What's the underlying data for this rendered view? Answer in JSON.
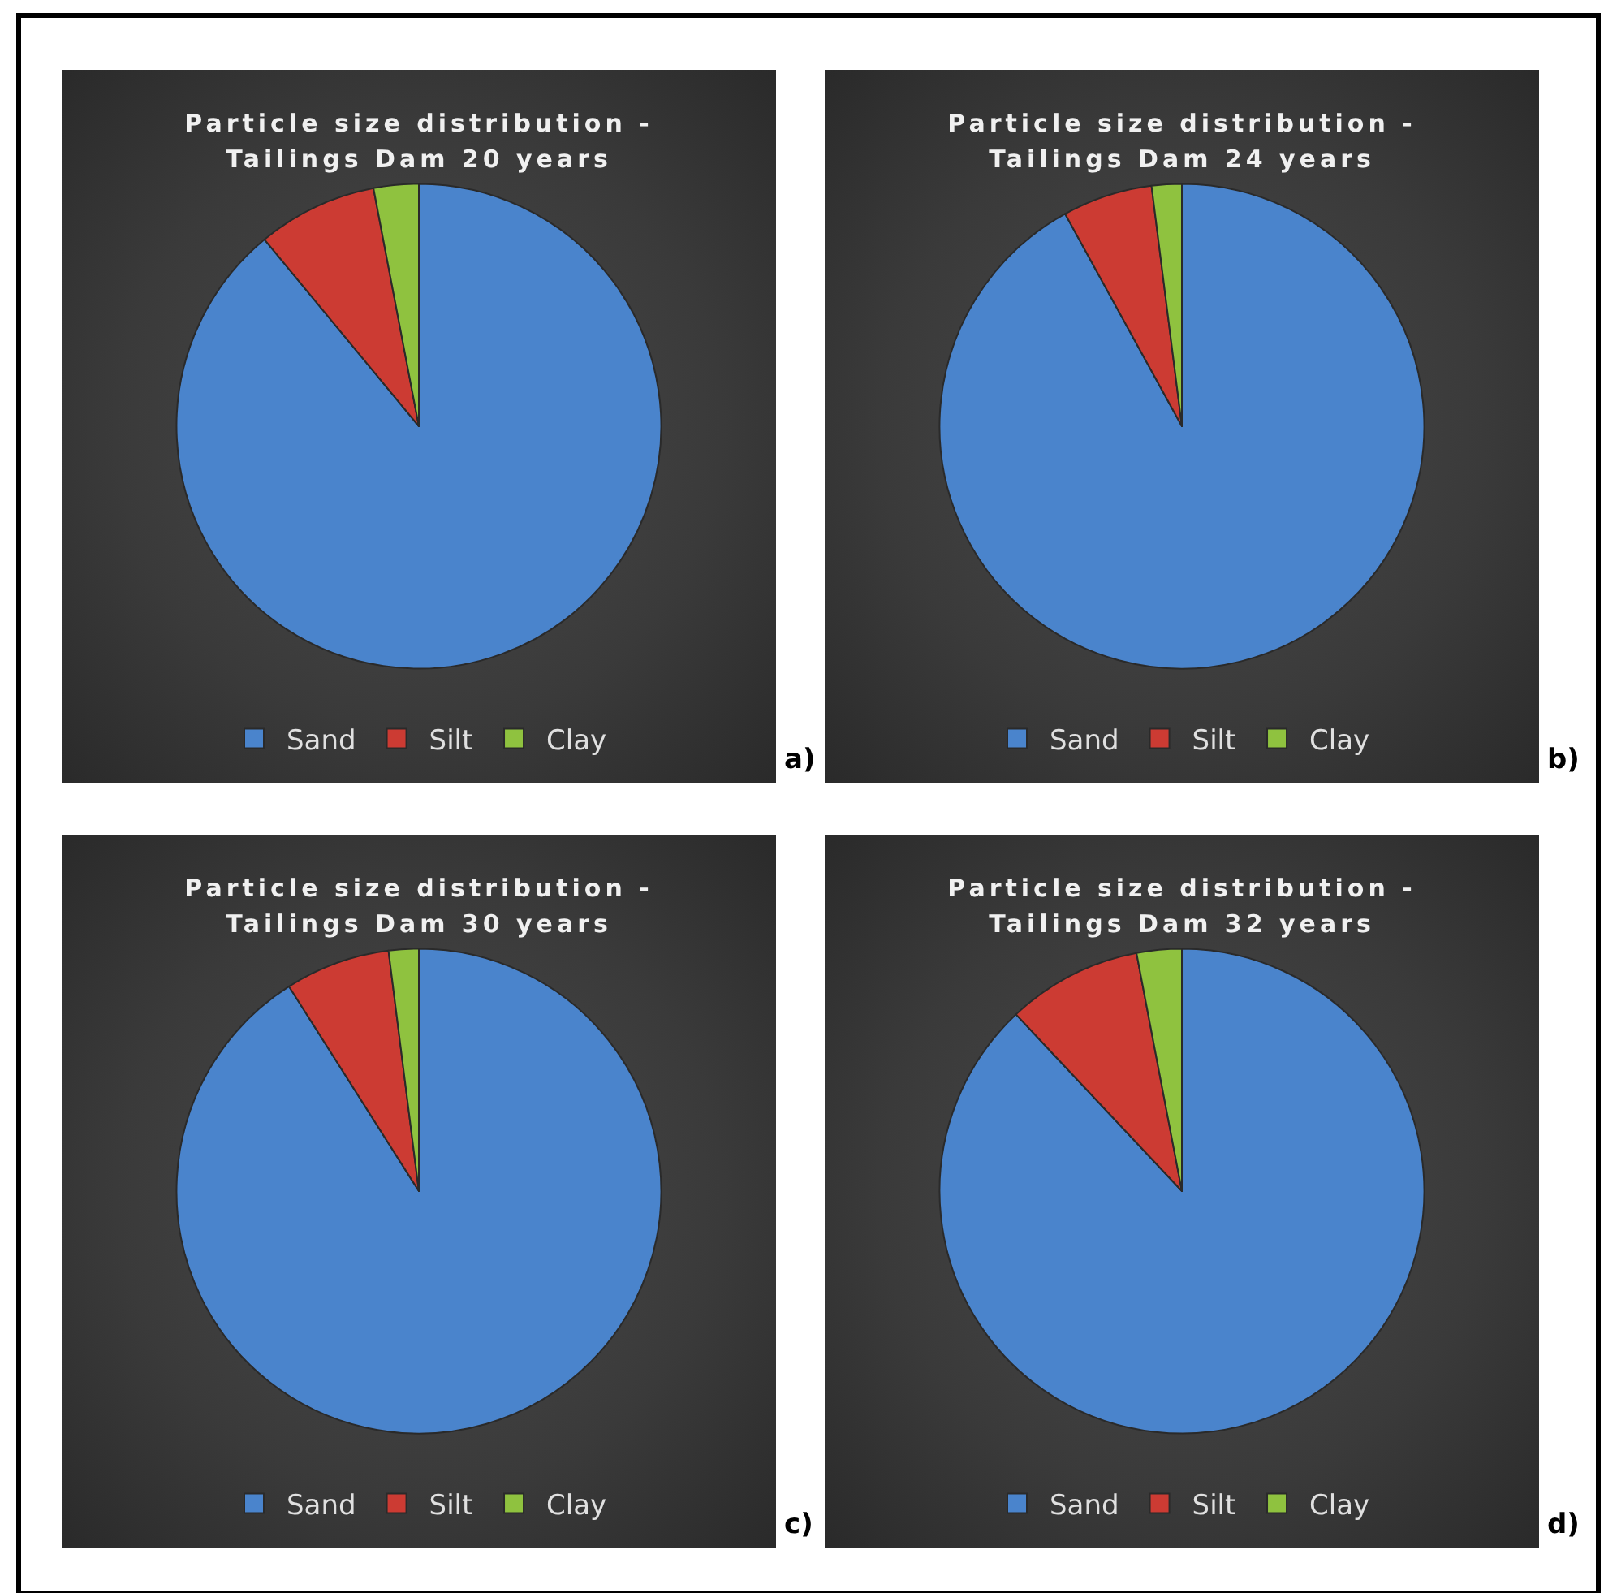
{
  "chart_data": [
    {
      "type": "pie",
      "title": "Particle size distribution - Tailings Dam 20 years",
      "categories": [
        "Sand",
        "Silt",
        "Clay"
      ],
      "values": [
        89,
        8,
        3
      ],
      "colors": [
        "#4a84cc",
        "#cc3b33",
        "#8fc23f"
      ],
      "legend": "bottom",
      "annotations": [
        "a)"
      ]
    },
    {
      "type": "pie",
      "title": "Particle size distribution - Tailings Dam 24 years",
      "categories": [
        "Sand",
        "Silt",
        "Clay"
      ],
      "values": [
        92,
        6,
        2
      ],
      "colors": [
        "#4a84cc",
        "#cc3b33",
        "#8fc23f"
      ],
      "legend": "bottom",
      "annotations": [
        "b)"
      ]
    },
    {
      "type": "pie",
      "title": "Particle size distribution - Tailings Dam 30 years",
      "categories": [
        "Sand",
        "Silt",
        "Clay"
      ],
      "values": [
        91,
        7,
        2
      ],
      "colors": [
        "#4a84cc",
        "#cc3b33",
        "#8fc23f"
      ],
      "legend": "bottom",
      "annotations": [
        "c)"
      ]
    },
    {
      "type": "pie",
      "title": "Particle size distribution - Tailings Dam 32 years",
      "categories": [
        "Sand",
        "Silt",
        "Clay"
      ],
      "values": [
        88,
        9,
        3
      ],
      "colors": [
        "#4a84cc",
        "#cc3b33",
        "#8fc23f"
      ],
      "legend": "bottom",
      "annotations": [
        "d)"
      ]
    }
  ]
}
